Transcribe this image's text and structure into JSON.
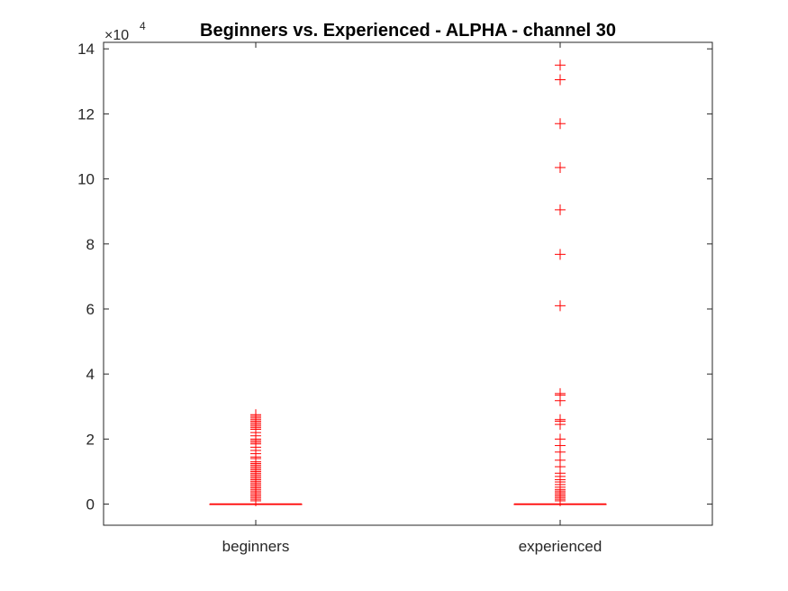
{
  "chart_data": {
    "type": "boxplot",
    "title": "Beginners vs. Experienced - ALPHA - channel 30",
    "xlabel": "",
    "ylabel": "",
    "exponent_label": {
      "base": "×10",
      "power": "4"
    },
    "categories": [
      "beginners",
      "experienced"
    ],
    "ylim": [
      -6500,
      142000
    ],
    "y_ticks": [
      0,
      20000,
      40000,
      60000,
      80000,
      100000,
      120000,
      140000
    ],
    "y_tick_labels": [
      "0",
      "2",
      "4",
      "6",
      "8",
      "10",
      "12",
      "14"
    ],
    "grid": false,
    "series_color": "#ff0000",
    "series": [
      {
        "category": "beginners",
        "box": {
          "q1": 0,
          "median": 0,
          "q3": 0
        },
        "whiskers": [
          0,
          0
        ],
        "outliers": [
          27500,
          27000,
          26500,
          26000,
          25500,
          25000,
          24500,
          24000,
          23500,
          23000,
          22000,
          21000,
          20000,
          19500,
          19000,
          18500,
          17500,
          16500,
          15500,
          14500,
          14000,
          13000,
          12500,
          12000,
          11500,
          11000,
          10500,
          10000,
          9500,
          9000,
          8500,
          8000,
          7500,
          7000,
          6500,
          6000,
          5500,
          5000,
          4500,
          4000,
          3500,
          3000,
          2500,
          2000,
          1500,
          1000
        ]
      },
      {
        "category": "experienced",
        "box": {
          "q1": 0,
          "median": 0,
          "q3": 0
        },
        "whiskers": [
          0,
          0
        ],
        "outliers": [
          135000,
          130500,
          117000,
          103500,
          90500,
          76800,
          61000,
          34000,
          33500,
          31800,
          26000,
          25500,
          24500,
          20000,
          18000,
          16000,
          13500,
          11500,
          9500,
          8500,
          7500,
          6800,
          6000,
          5200,
          4500,
          4000,
          3500,
          3000,
          2500,
          2000,
          1500,
          1000
        ]
      }
    ]
  }
}
